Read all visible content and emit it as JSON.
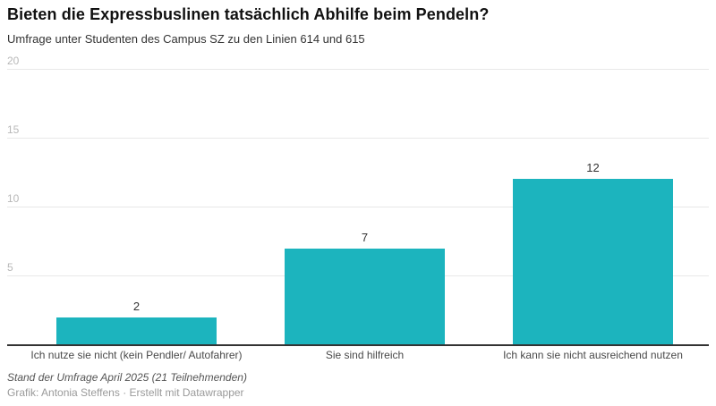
{
  "header": {
    "title": "Bieten die Expressbuslinen tatsächlich Abhilfe beim Pendeln?",
    "subtitle": "Umfrage unter Studenten des Campus SZ zu den Linien 614 und 615"
  },
  "chart_data": {
    "type": "bar",
    "title": "Bieten die Expressbuslinen tatsächlich Abhilfe beim Pendeln?",
    "subtitle": "Umfrage unter Studenten des Campus SZ zu den Linien 614 und 615",
    "categories": [
      "Ich nutze sie nicht (kein Pendler/ Autofahrer)",
      "Sie sind hilfreich",
      "Ich kann sie nicht ausreichend nutzen"
    ],
    "values": [
      2,
      7,
      12
    ],
    "value_labels": [
      "2",
      "7",
      "12"
    ],
    "xlabel": "",
    "ylabel": "",
    "ylim": [
      0,
      20
    ],
    "yticks": [
      5,
      10,
      15,
      20
    ],
    "grid": true,
    "legend": "none",
    "bar_color": "#1cb4be",
    "gridline_color": "#e8e8e8",
    "axis_color": "#333333",
    "tick_label_color": "#b8b8b8"
  },
  "footer": {
    "note": "Stand der Umfrage April 2025 (21 Teilnehmenden)",
    "byline": "Grafik: Antonia Steffens · Erstellt mit Datawrapper"
  }
}
